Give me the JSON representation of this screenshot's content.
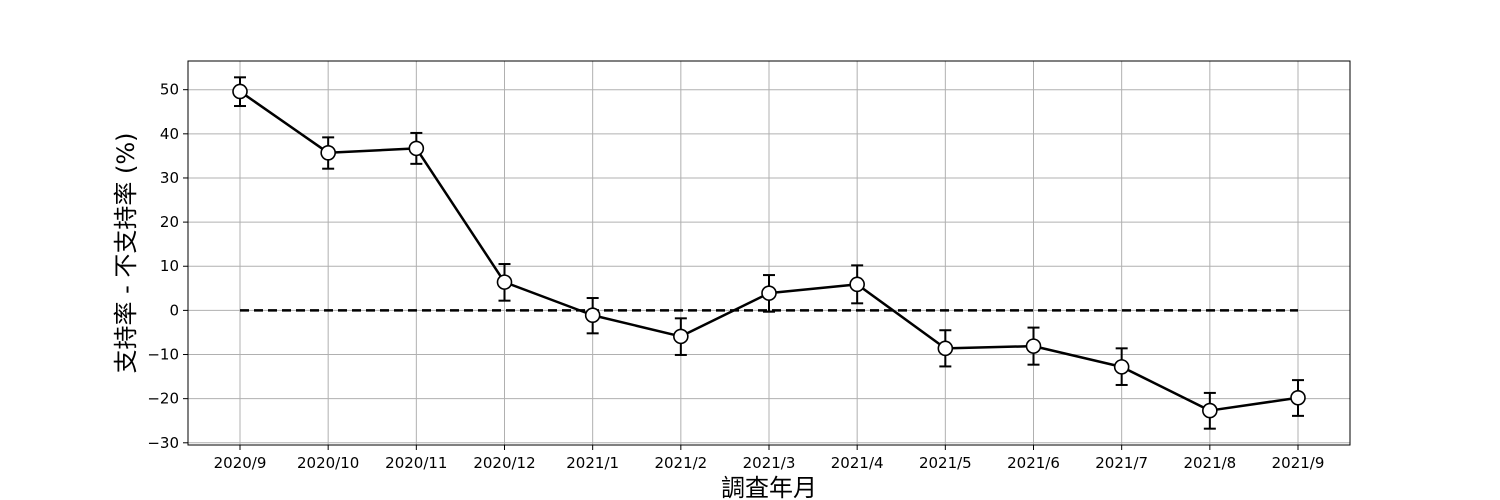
{
  "chart_data": {
    "type": "line",
    "title": "",
    "xlabel": "調査年月",
    "ylabel": "支持率 - 不支持率 (%)",
    "categories": [
      "2020/9",
      "2020/10",
      "2020/11",
      "2020/12",
      "2021/1",
      "2021/2",
      "2021/3",
      "2021/4",
      "2021/5",
      "2021/6",
      "2021/7",
      "2021/8",
      "2021/9"
    ],
    "series": [
      {
        "values": [
          49.6,
          35.7,
          36.7,
          6.4,
          -1.1,
          -5.9,
          3.9,
          5.9,
          -8.6,
          -8.1,
          -12.8,
          -22.7,
          -19.8
        ],
        "error_low": [
          46.3,
          32.1,
          33.2,
          2.2,
          -5.2,
          -10.1,
          -0.3,
          1.6,
          -12.7,
          -12.3,
          -16.9,
          -26.8,
          -23.9
        ],
        "error_high": [
          52.8,
          39.2,
          40.2,
          10.5,
          2.8,
          -1.8,
          8.0,
          10.2,
          -4.5,
          -3.9,
          -8.6,
          -18.7,
          -15.8
        ],
        "color": "#000000",
        "marker": "open-circle"
      }
    ],
    "reference_line": {
      "y": 0,
      "style": "dashed"
    },
    "yticks": [
      50,
      40,
      30,
      20,
      10,
      0,
      -10,
      -20,
      -30
    ],
    "ytick_labels": [
      "50",
      "40",
      "30",
      "20",
      "10",
      "0",
      "−10",
      "−20",
      "−30"
    ],
    "ylim": [
      -30.5,
      56.5
    ],
    "grid": true,
    "legend": false
  }
}
